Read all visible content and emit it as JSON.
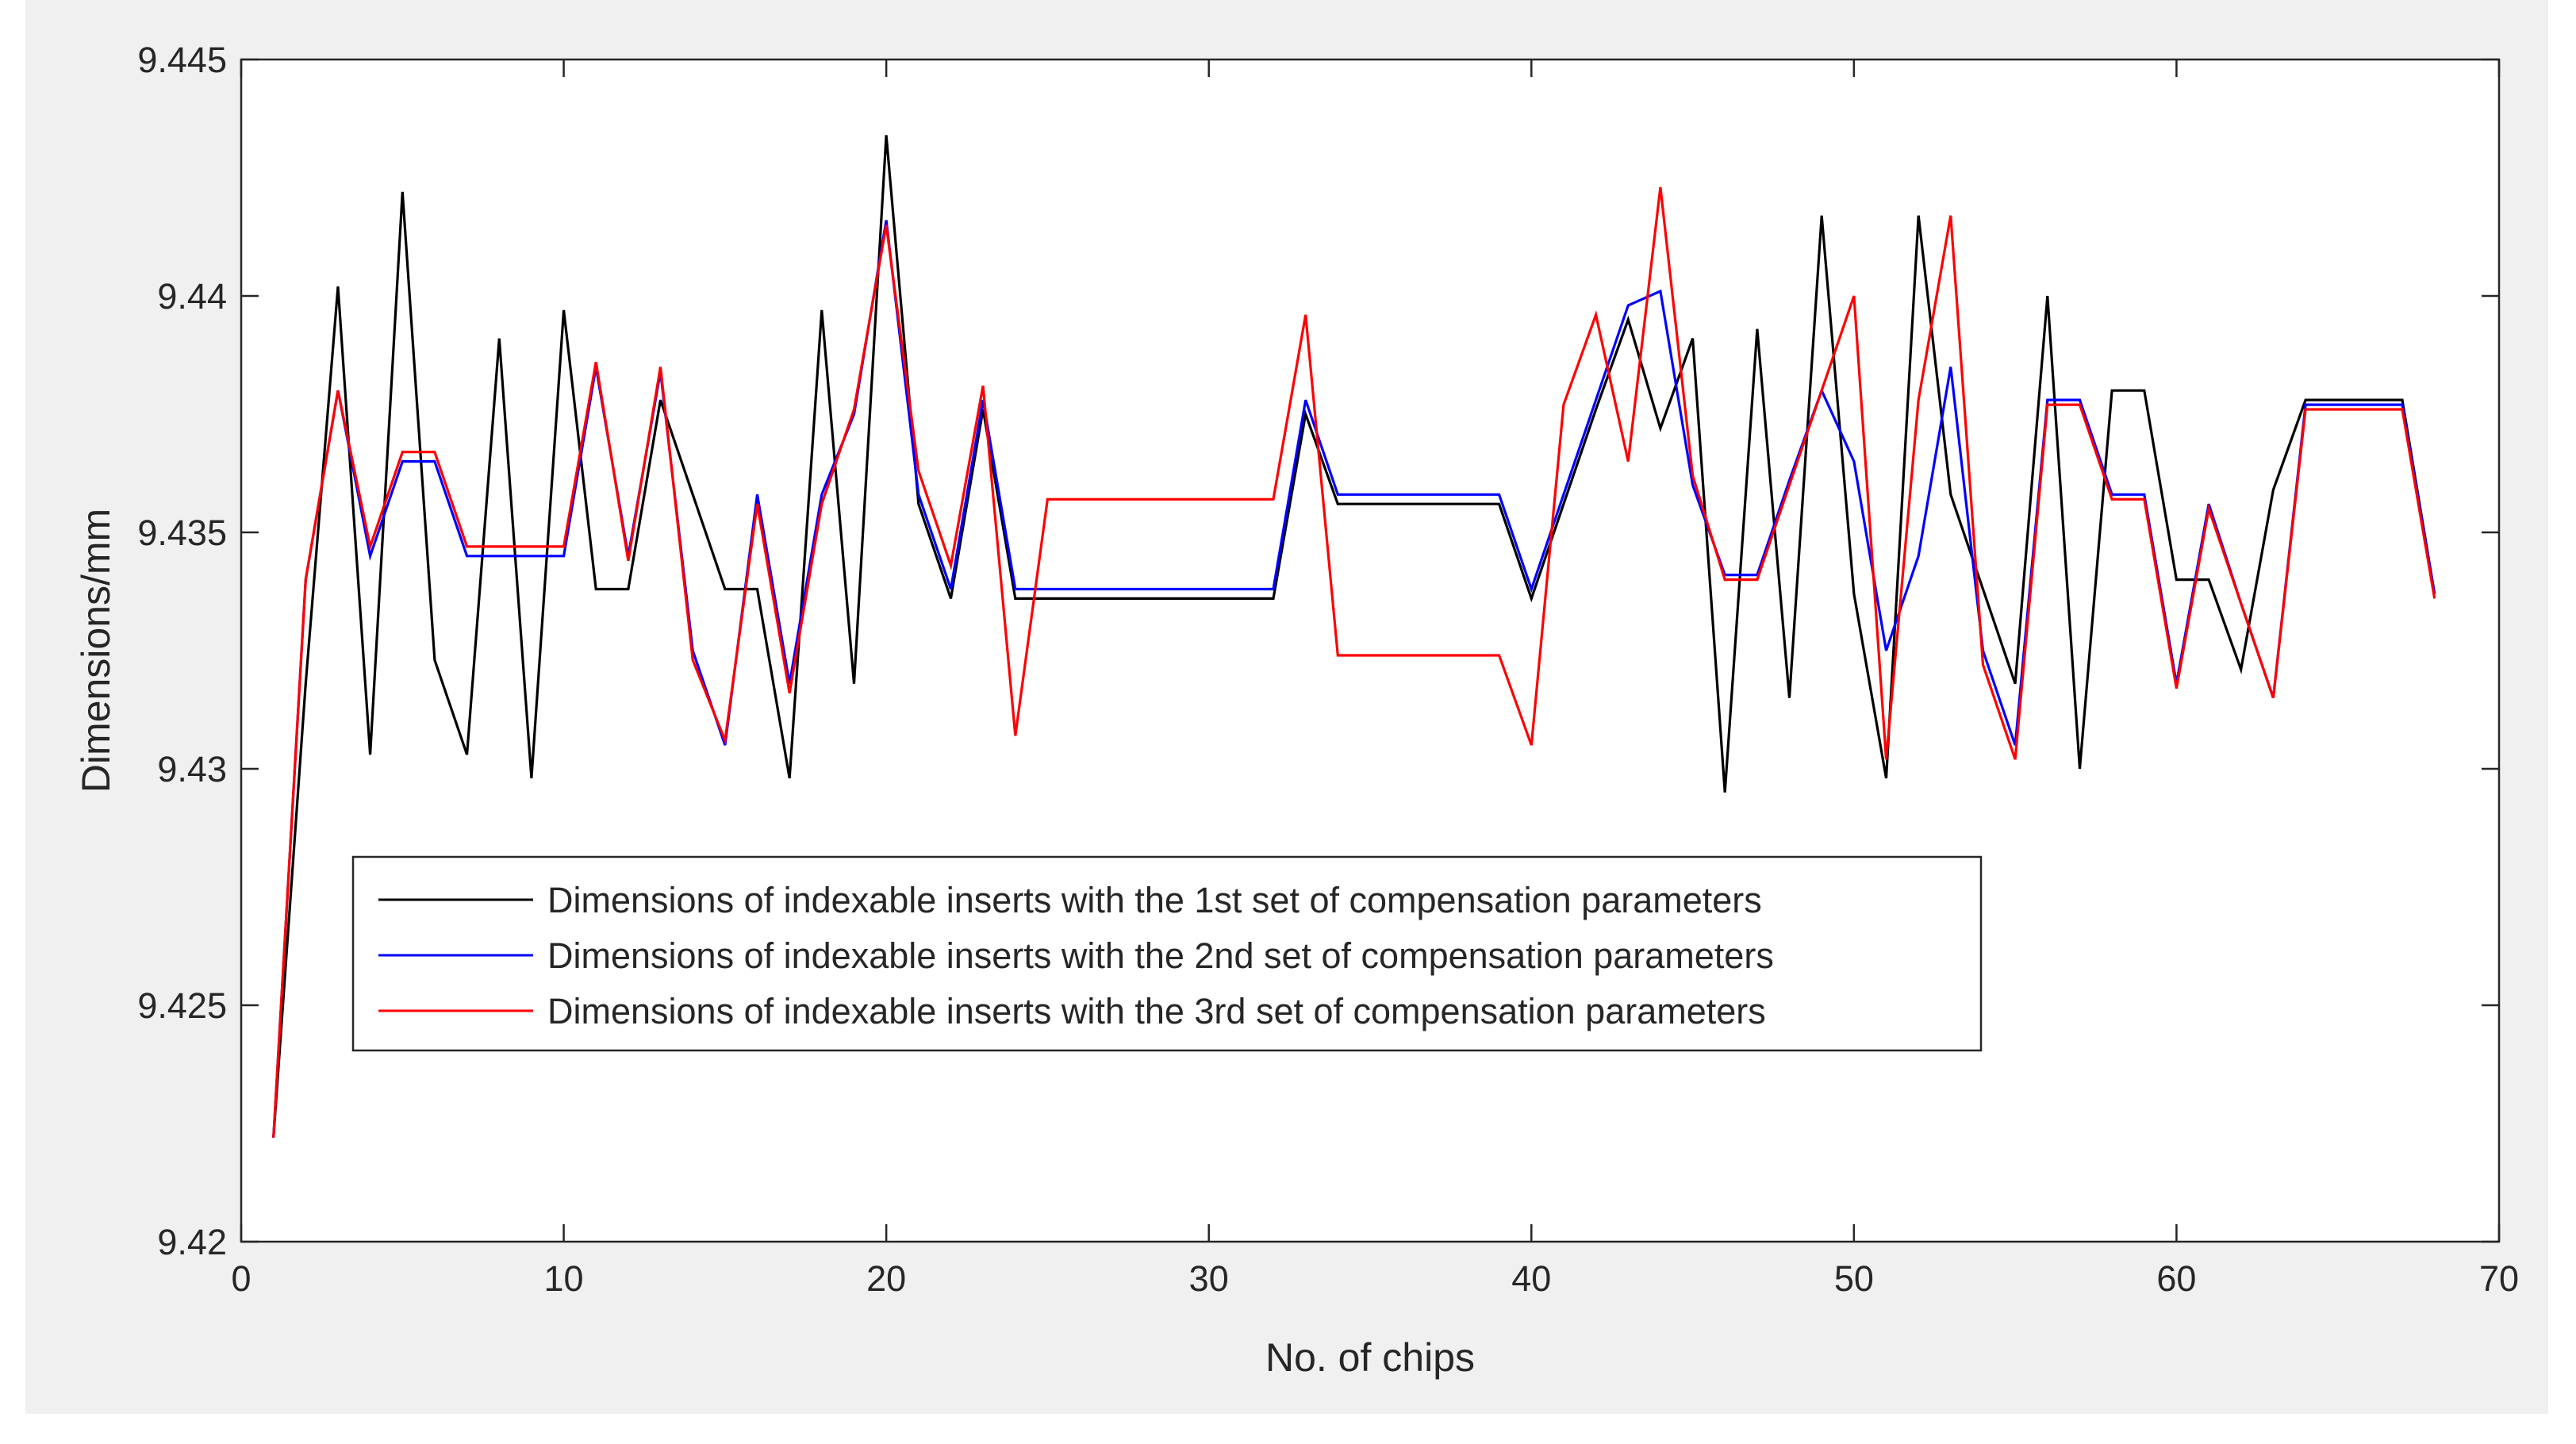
{
  "chart_data": {
    "type": "line",
    "xlabel": "No. of chips",
    "ylabel": "Dimensions/mm",
    "xlim": [
      0,
      70
    ],
    "ylim": [
      9.42,
      9.445
    ],
    "xticks": [
      0,
      10,
      20,
      30,
      40,
      50,
      60,
      70
    ],
    "yticks": [
      9.42,
      9.425,
      9.43,
      9.435,
      9.44,
      9.445
    ],
    "xtick_labels": [
      "0",
      "10",
      "20",
      "30",
      "40",
      "50",
      "60",
      "70"
    ],
    "ytick_labels": [
      "9.42",
      "9.425",
      "9.43",
      "9.435",
      "9.44",
      "9.445"
    ],
    "grid": false,
    "legend_position": "lower-left",
    "x": [
      1,
      2,
      3,
      4,
      5,
      6,
      7,
      8,
      9,
      10,
      11,
      12,
      13,
      14,
      15,
      16,
      17,
      18,
      19,
      20,
      21,
      22,
      23,
      24,
      25,
      26,
      27,
      28,
      29,
      30,
      31,
      32,
      33,
      34,
      35,
      36,
      37,
      38,
      39,
      40,
      41,
      42,
      43,
      44,
      45,
      46,
      47,
      48,
      49,
      50,
      51,
      52,
      53,
      54,
      55,
      56,
      57,
      58,
      59,
      60,
      61,
      62,
      63,
      64,
      65,
      66,
      67,
      68
    ],
    "series": [
      {
        "name": "Dimensions of indexable inserts with the 1st set of compensation parameters",
        "color": "#000000",
        "values": [
          9.4222,
          9.4318,
          9.4402,
          9.4303,
          9.4422,
          9.4323,
          9.4303,
          9.4391,
          9.4298,
          9.4397,
          9.4338,
          9.4338,
          9.4378,
          9.4358,
          9.4338,
          9.4338,
          9.4298,
          9.4397,
          9.4318,
          9.4434,
          9.4356,
          9.4336,
          9.4376,
          9.4336,
          9.4336,
          9.4336,
          9.4336,
          9.4336,
          9.4336,
          9.4336,
          9.4336,
          9.4336,
          9.4375,
          9.4356,
          9.4356,
          9.4356,
          9.4356,
          9.4356,
          9.4356,
          9.4336,
          9.4356,
          9.4376,
          9.4395,
          9.4372,
          9.4391,
          9.4295,
          9.4393,
          9.4315,
          9.4417,
          9.4337,
          9.4298,
          9.4417,
          9.4358,
          9.4338,
          9.4318,
          9.44,
          9.43,
          9.438,
          9.438,
          9.434,
          9.434,
          9.4321,
          9.4359,
          9.4378,
          9.4378,
          9.4378,
          9.4378,
          9.4337
        ]
      },
      {
        "name": "Dimensions of indexable inserts with the 2nd set of compensation parameters",
        "color": "#0000ff",
        "values": [
          9.4222,
          9.434,
          9.438,
          9.4345,
          9.4365,
          9.4365,
          9.4345,
          9.4345,
          9.4345,
          9.4345,
          9.4385,
          9.4345,
          9.4384,
          9.4325,
          9.4305,
          9.4358,
          9.4318,
          9.4358,
          9.4375,
          9.4416,
          9.4358,
          9.4338,
          9.4378,
          9.4338,
          9.4338,
          9.4338,
          9.4338,
          9.4338,
          9.4338,
          9.4338,
          9.4338,
          9.4338,
          9.4378,
          9.4358,
          9.4358,
          9.4358,
          9.4358,
          9.4358,
          9.4358,
          9.4338,
          9.4358,
          9.4378,
          9.4398,
          9.4401,
          9.436,
          9.4341,
          9.4341,
          9.4361,
          9.438,
          9.4365,
          9.4325,
          9.4345,
          9.4385,
          9.4325,
          9.4305,
          9.4378,
          9.4378,
          9.4358,
          9.4358,
          9.4318,
          9.4356,
          9.4335,
          9.4315,
          9.4377,
          9.4377,
          9.4377,
          9.4377,
          9.4337
        ]
      },
      {
        "name": "Dimensions of indexable inserts with the 3rd set of compensation parameters",
        "color": "#ff0000",
        "values": [
          9.4222,
          9.434,
          9.438,
          9.4347,
          9.4367,
          9.4367,
          9.4347,
          9.4347,
          9.4347,
          9.4347,
          9.4386,
          9.4344,
          9.4385,
          9.4323,
          9.4306,
          9.4356,
          9.4316,
          9.4356,
          9.4376,
          9.4415,
          9.4363,
          9.4343,
          9.4381,
          9.4307,
          9.4357,
          9.4357,
          9.4357,
          9.4357,
          9.4357,
          9.4357,
          9.4357,
          9.4357,
          9.4396,
          9.4324,
          9.4324,
          9.4324,
          9.4324,
          9.4324,
          9.4324,
          9.4305,
          9.4377,
          9.4396,
          9.4365,
          9.4423,
          9.4362,
          9.434,
          9.434,
          9.436,
          9.438,
          9.44,
          9.4302,
          9.4378,
          9.4417,
          9.4322,
          9.4302,
          9.4377,
          9.4377,
          9.4357,
          9.4357,
          9.4317,
          9.4355,
          9.4335,
          9.4315,
          9.4376,
          9.4376,
          9.4376,
          9.4376,
          9.4336
        ]
      }
    ]
  }
}
